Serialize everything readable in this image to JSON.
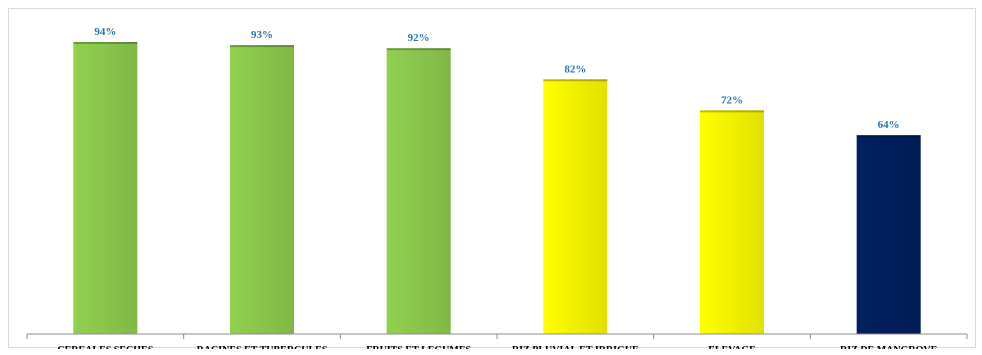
{
  "chart_data": {
    "type": "bar",
    "title": "",
    "xlabel": "",
    "ylabel": "",
    "ylim": [
      0,
      100
    ],
    "grid": false,
    "legend": "none",
    "categories": [
      "CEREALES SECHES",
      "RACINES ET TUBERCULES",
      "FRUITS ET LEGUMES",
      "RIZ PLUVIAL ET IRRIGUE",
      "ELEVAGE",
      "RIZ DE MANGROVE"
    ],
    "values": [
      94,
      93,
      92,
      82,
      72,
      64
    ],
    "value_labels": [
      "94%",
      "93%",
      "92%",
      "82%",
      "72%",
      "64%"
    ],
    "bar_colors": [
      "#92d050",
      "#92d050",
      "#92d050",
      "#ffff00",
      "#ffff00",
      "#002060"
    ]
  },
  "colors": {
    "data_label": "#2e75b6",
    "axis": "#8c8c8c"
  }
}
